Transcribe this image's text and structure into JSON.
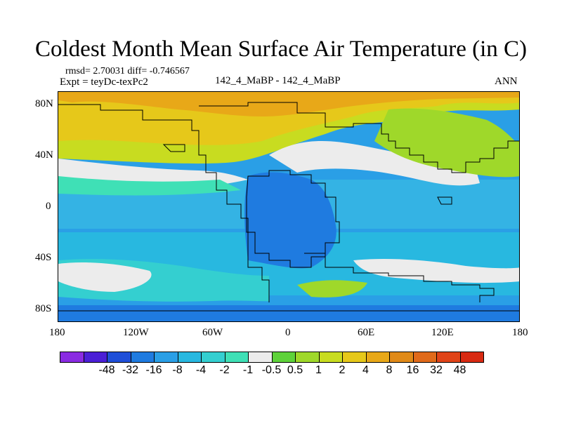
{
  "title": "Coldest Month Mean Surface Air Temperature (in C)",
  "stats": "rmsd= 2.70031  diff= -0.746567",
  "expt": "Expt = teyDc-texPc2",
  "comparison": "142_4_MaBP - 142_4_MaBP",
  "season": "ANN",
  "lat_labels": [
    "80N",
    "40N",
    "0",
    "40S",
    "80S"
  ],
  "lon_labels": [
    "180",
    "120W",
    "60W",
    "0",
    "60E",
    "120E",
    "180"
  ],
  "colorbar": {
    "colors": [
      "#8a2be2",
      "#4b1fd6",
      "#1f4fd8",
      "#1f7be0",
      "#2a9fe6",
      "#28b8e0",
      "#34cfd0",
      "#3fe0b6",
      "#ececec",
      "#5ed23a",
      "#9fd82a",
      "#c8dc20",
      "#e6c81a",
      "#e8a818",
      "#e08a18",
      "#e06a1a",
      "#e04418",
      "#d82a12"
    ],
    "labels": [
      "-48",
      "-32",
      "-16",
      "-8",
      "-4",
      "-2",
      "-1",
      "-0.5",
      "0.5",
      "1",
      "2",
      "4",
      "8",
      "16",
      "32",
      "48"
    ]
  }
}
